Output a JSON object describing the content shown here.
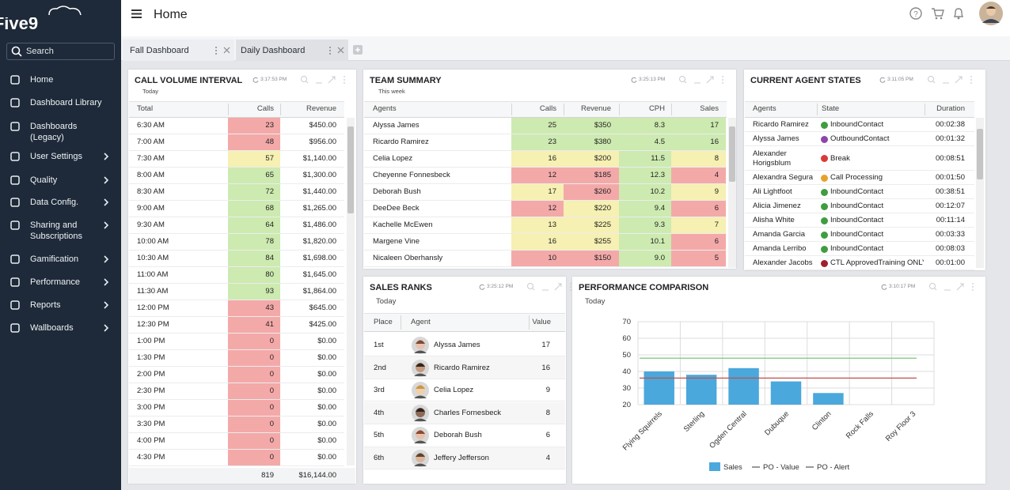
{
  "sidebar": {
    "logo": "Five9",
    "search": "Search",
    "nav": [
      {
        "label": "Home",
        "submenu": false
      },
      {
        "label": "Dashboard Library",
        "submenu": false
      },
      {
        "label": "Dashboards (Legacy)",
        "submenu": false
      },
      {
        "label": "User Settings",
        "submenu": true
      },
      {
        "label": "Quality",
        "submenu": true
      },
      {
        "label": "Data Config.",
        "submenu": true
      },
      {
        "label": "Sharing and Subscriptions",
        "submenu": true
      },
      {
        "label": "Gamification",
        "submenu": true
      },
      {
        "label": "Performance",
        "submenu": true
      },
      {
        "label": "Reports",
        "submenu": true
      },
      {
        "label": "Wallboards",
        "submenu": true
      }
    ]
  },
  "header": {
    "title": "Home"
  },
  "tabs": [
    "Fall Dashboard",
    "Daily Dashboard"
  ],
  "call_volume": {
    "title": "CALL VOLUME INTERVAL",
    "time": "3:17:53 PM",
    "subtitle": "Today",
    "columns": [
      "Total",
      "Calls",
      "Revenue"
    ],
    "rows": [
      [
        "6:30 AM",
        23,
        "$450.00"
      ],
      [
        "7:00 AM",
        48,
        "$956.00"
      ],
      [
        "7:30 AM",
        57,
        "$1,140.00"
      ],
      [
        "8:00 AM",
        65,
        "$1,300.00"
      ],
      [
        "8:30 AM",
        72,
        "$1,440.00"
      ],
      [
        "9:00 AM",
        68,
        "$1,265.00"
      ],
      [
        "9:30 AM",
        64,
        "$1,486.00"
      ],
      [
        "10:00 AM",
        78,
        "$1,820.00"
      ],
      [
        "10:30 AM",
        84,
        "$1,698.00"
      ],
      [
        "11:00 AM",
        80,
        "$1,645.00"
      ],
      [
        "11:30 AM",
        93,
        "$1,864.00"
      ],
      [
        "12:00 PM",
        43,
        "$645.00"
      ],
      [
        "12:30 PM",
        41,
        "$425.00"
      ],
      [
        "1:00 PM",
        0,
        "$0.00"
      ],
      [
        "1:30 PM",
        0,
        "$0.00"
      ],
      [
        "2:00 PM",
        0,
        "$0.00"
      ],
      [
        "2:30 PM",
        0,
        "$0.00"
      ],
      [
        "3:00 PM",
        0,
        "$0.00"
      ],
      [
        "3:30 PM",
        0,
        "$0.00"
      ],
      [
        "4:00 PM",
        0,
        "$0.00"
      ],
      [
        "4:30 PM",
        0,
        "$0.00"
      ]
    ],
    "status": [
      "red",
      "red",
      "yellow",
      "green",
      "green",
      "green",
      "green",
      "green",
      "green",
      "green",
      "green",
      "red",
      "red",
      "red",
      "red",
      "red",
      "red",
      "red",
      "red",
      "red",
      "red"
    ],
    "totals": [
      819,
      "$16,144.00"
    ]
  },
  "team_summary": {
    "title": "TEAM SUMMARY",
    "time": "3:25:13 PM",
    "subtitle": "This week",
    "columns": [
      "Agents",
      "Calls",
      "Revenue",
      "CPH",
      "Sales"
    ],
    "rows": [
      [
        "Alyssa James",
        25,
        "$350",
        "8.3",
        17
      ],
      [
        "Ricardo Ramirez",
        23,
        "$380",
        "4.5",
        16
      ],
      [
        "Celia Lopez",
        16,
        "$200",
        "11.5",
        8
      ],
      [
        "Cheyenne Fonnesbeck",
        12,
        "$185",
        "12.3",
        4
      ],
      [
        "Deborah Bush",
        17,
        "$260",
        "10.2",
        9
      ],
      [
        "DeeDee Beck",
        12,
        "$220",
        "9.4",
        6
      ],
      [
        "Kachelle McEwen",
        13,
        "$225",
        "9.3",
        7
      ],
      [
        "Margene Vine",
        16,
        "$255",
        "10.1",
        6
      ],
      [
        "Nicaleen Oberhansly",
        10,
        "$150",
        "9.0",
        5
      ]
    ],
    "status": [
      [
        "green",
        "green",
        "green",
        "green"
      ],
      [
        "green",
        "green",
        "green",
        "green"
      ],
      [
        "yellow",
        "yellow",
        "green",
        "yellow"
      ],
      [
        "red",
        "red",
        "green",
        "red"
      ],
      [
        "yellow",
        "red",
        "green",
        "yellow"
      ],
      [
        "red",
        "yellow",
        "green",
        "red"
      ],
      [
        "yellow",
        "yellow",
        "green",
        "yellow"
      ],
      [
        "yellow",
        "yellow",
        "green",
        "red"
      ],
      [
        "red",
        "red",
        "green",
        "red"
      ]
    ]
  },
  "agent_states": {
    "title": "CURRENT AGENT STATES",
    "time": "3:11:05 PM",
    "columns": [
      "Agents",
      "State",
      "Duration"
    ],
    "rows": [
      [
        "Ricardo Ramirez",
        "InboundContact",
        "00:02:38"
      ],
      [
        "Alyssa James",
        "OutboundContact",
        "00:01:32"
      ],
      [
        "Alexander Horigsblum",
        "Break",
        "00:08:51"
      ],
      [
        "Alexandra Segura",
        "Call Processing",
        "00:01:50"
      ],
      [
        "Ali Lightfoot",
        "InboundContact",
        "00:38:51"
      ],
      [
        "Alicia Jimenez",
        "InboundContact",
        "00:12:07"
      ],
      [
        "Alisha White",
        "InboundContact",
        "00:11:14"
      ],
      [
        "Amanda Garcia",
        "InboundContact",
        "00:03:33"
      ],
      [
        "Amanda Lerribo",
        "InboundContact",
        "00:08:03"
      ],
      [
        "Alexander Jacobs",
        "CTL ApprovedTraining ONLY",
        "00:01:00"
      ]
    ],
    "state_colors": [
      "#3f9d3f",
      "#8e44ad",
      "#d93a3a",
      "#e8a22c",
      "#3f9d3f",
      "#3f9d3f",
      "#3f9d3f",
      "#3f9d3f",
      "#3f9d3f",
      "#a01f2d"
    ]
  },
  "sales_ranks": {
    "title": "SALES RANKS",
    "time": "3:25:12 PM",
    "subtitle": "Today",
    "columns": [
      "Place",
      "Agent",
      "Value"
    ],
    "rows": [
      [
        "1st",
        "Alyssa James",
        17
      ],
      [
        "2nd",
        "Ricardo Ramirez",
        16
      ],
      [
        "3rd",
        "Celia Lopez",
        9
      ],
      [
        "4th",
        "Charles Fornesbeck",
        8
      ],
      [
        "5th",
        "Deborah Bush",
        6
      ],
      [
        "6th",
        "Jeffery Jefferson",
        4
      ]
    ]
  },
  "chart_data": {
    "type": "bar",
    "title": "PERFORMANCE COMPARISON",
    "time": "3:10:17 PM",
    "subtitle": "Today",
    "categories": [
      "Flying Squirrels",
      "Sterling",
      "Ogden Central",
      "Dubuque",
      "Clinton",
      "Rock Falls",
      "Roy Floor 3"
    ],
    "series": [
      {
        "name": "Sales",
        "color": "#4aa8dc",
        "values": [
          40,
          38,
          42,
          34,
          27,
          null,
          null
        ]
      }
    ],
    "reference_lines": [
      {
        "name": "PO - Value",
        "color": "#6cc16c",
        "value": 48
      },
      {
        "name": "PO - Alert",
        "color": "#c0504d",
        "value": 36
      }
    ],
    "ylim": [
      20,
      70
    ],
    "yticks": [
      20,
      30,
      40,
      50,
      60,
      70
    ],
    "grid": true
  }
}
